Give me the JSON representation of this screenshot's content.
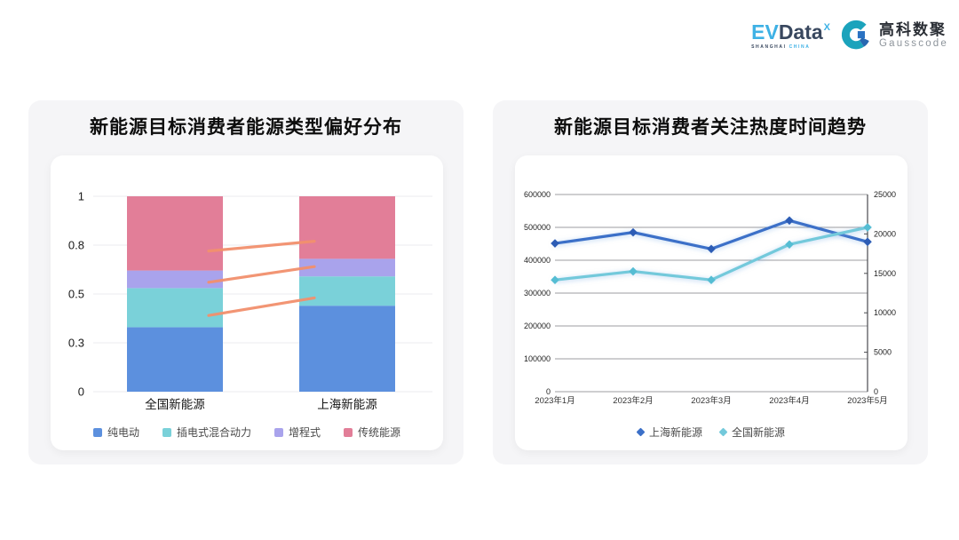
{
  "header": {
    "evdata": {
      "part1": "EV",
      "part2": "Data",
      "sup": "X",
      "subtitle_dark": "SHANGHAI",
      "subtitle_light": "CHINA"
    },
    "gausscode": {
      "name_cn": "高科数聚",
      "name_en": "Gausscode"
    }
  },
  "colors": {
    "card_bg": "#f5f5f7",
    "panel_bg": "#ffffff",
    "bar_grid": "#ebebef",
    "line_grid": "#9c9ca0",
    "line_axis": "#4a4b4f",
    "connector": "#f2906d"
  },
  "chart_data": [
    {
      "type": "bar",
      "stacked": true,
      "title": "新能源目标消费者能源类型偏好分布",
      "categories": [
        "全国新能源",
        "上海新能源"
      ],
      "series": [
        {
          "name": "纯电动",
          "color": "#5c90de",
          "values": [
            0.33,
            0.44
          ]
        },
        {
          "name": "插电式混合动力",
          "color": "#7ad1d9",
          "values": [
            0.2,
            0.15
          ]
        },
        {
          "name": "增程式",
          "color": "#a9a3ec",
          "values": [
            0.09,
            0.09
          ]
        },
        {
          "name": "传统能源",
          "color": "#e27e98",
          "values": [
            0.38,
            0.32
          ]
        }
      ],
      "ylim": [
        0,
        1
      ],
      "y_ticks": [
        {
          "value": 0,
          "label": "0"
        },
        {
          "value": 0.25,
          "label": "0.3"
        },
        {
          "value": 0.5,
          "label": "0.5"
        },
        {
          "value": 0.75,
          "label": "0.8"
        },
        {
          "value": 1,
          "label": "1"
        }
      ],
      "connector_lines": {
        "color": "#f2906d",
        "segments": [
          {
            "from": 0.39,
            "to": 0.48
          },
          {
            "from": 0.56,
            "to": 0.64
          },
          {
            "from": 0.72,
            "to": 0.77
          }
        ]
      },
      "legend_position": "bottom",
      "grid": true
    },
    {
      "type": "line",
      "title": "新能源目标消费者关注热度时间趋势",
      "x": [
        "2023年1月",
        "2023年2月",
        "2023年3月",
        "2023年4月",
        "2023年5月"
      ],
      "series": [
        {
          "name": "上海新能源",
          "axis": "right",
          "color": "#3c70c8",
          "marker_color": "#2c5cb5",
          "marker": "diamond",
          "values": [
            18800,
            20200,
            18100,
            21700,
            19000
          ]
        },
        {
          "name": "全国新能源",
          "axis": "left",
          "color": "#73c9db",
          "marker_color": "#55bdd3",
          "marker": "diamond",
          "values": [
            340000,
            366000,
            340000,
            448000,
            500000
          ]
        }
      ],
      "left_axis": {
        "min": 0,
        "max": 600000,
        "ticks": [
          "600000",
          "500000",
          "400000",
          "300000",
          "200000",
          "100000",
          "0"
        ]
      },
      "right_axis": {
        "min": 0,
        "max": 25000,
        "ticks": [
          "25000",
          "20000",
          "15000",
          "10000",
          "5000",
          "0"
        ]
      },
      "legend_position": "bottom",
      "grid": true
    }
  ]
}
